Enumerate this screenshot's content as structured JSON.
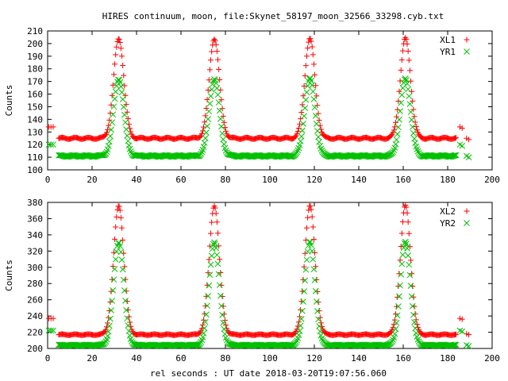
{
  "title": "HIRES continuum, moon, file:Skynet_58197_moon_32566_33298.cyb.txt",
  "xlabel": "rel seconds : UT date 2018-03-20T19:07:56.060",
  "colors": {
    "xl": "#ff0000",
    "yr": "#00c000",
    "axis": "#000000"
  },
  "chart_data": [
    {
      "type": "scatter",
      "ylabel": "Counts",
      "xlim": [
        0,
        200
      ],
      "ylim": [
        100,
        210
      ],
      "xticks": [
        "0",
        "20",
        "40",
        "60",
        "80",
        "100",
        "120",
        "140",
        "160",
        "180",
        "200"
      ],
      "yticks": [
        "100",
        "110",
        "120",
        "130",
        "140",
        "150",
        "160",
        "170",
        "180",
        "190",
        "200",
        "210"
      ],
      "legend_position": "top-right",
      "peak_centers": [
        32,
        75,
        118,
        161
      ],
      "peak_width_sigma": 2.3,
      "sample_interval": 0.4,
      "scan_range": [
        5,
        184
      ],
      "series": [
        {
          "name": "XL1",
          "marker": "plus",
          "baseline": 125,
          "peak": 204,
          "edge_points": [
            {
              "x": 0.5,
              "y": 134
            },
            {
              "x": 1.5,
              "y": 134
            },
            {
              "x": 2.5,
              "y": 134
            },
            {
              "x": 185.5,
              "y": 134
            },
            {
              "x": 186.5,
              "y": 133
            },
            {
              "x": 188.5,
              "y": 125
            },
            {
              "x": 189.5,
              "y": 124
            }
          ]
        },
        {
          "name": "YR1",
          "marker": "cross",
          "baseline": 111,
          "peak": 172,
          "edge_points": [
            {
              "x": 0.5,
              "y": 120
            },
            {
              "x": 1.5,
              "y": 120
            },
            {
              "x": 2.5,
              "y": 120
            },
            {
              "x": 185.5,
              "y": 120
            },
            {
              "x": 186.5,
              "y": 119
            },
            {
              "x": 188.5,
              "y": 111
            },
            {
              "x": 189.5,
              "y": 110
            }
          ]
        }
      ]
    },
    {
      "type": "scatter",
      "ylabel": "Counts",
      "xlim": [
        0,
        200
      ],
      "ylim": [
        200,
        380
      ],
      "xticks": [
        "0",
        "20",
        "40",
        "60",
        "80",
        "100",
        "120",
        "140",
        "160",
        "180",
        "200"
      ],
      "yticks": [
        "200",
        "220",
        "240",
        "260",
        "280",
        "300",
        "320",
        "340",
        "360",
        "380"
      ],
      "legend_position": "top-right",
      "peak_centers": [
        32,
        75,
        118,
        161
      ],
      "peak_width_sigma": 2.3,
      "sample_interval": 0.4,
      "scan_range": [
        5,
        184
      ],
      "series": [
        {
          "name": "XL2",
          "marker": "plus",
          "baseline": 217,
          "peak": 376,
          "edge_points": [
            {
              "x": 0.5,
              "y": 237
            },
            {
              "x": 1.5,
              "y": 237
            },
            {
              "x": 2.5,
              "y": 237
            },
            {
              "x": 185.5,
              "y": 237
            },
            {
              "x": 186.5,
              "y": 236
            },
            {
              "x": 188.5,
              "y": 218
            },
            {
              "x": 189.5,
              "y": 217
            }
          ]
        },
        {
          "name": "YR2",
          "marker": "cross",
          "baseline": 204,
          "peak": 331,
          "edge_points": [
            {
              "x": 0.5,
              "y": 222
            },
            {
              "x": 1.5,
              "y": 222
            },
            {
              "x": 2.5,
              "y": 222
            },
            {
              "x": 185.5,
              "y": 222
            },
            {
              "x": 186.5,
              "y": 221
            },
            {
              "x": 188.5,
              "y": 204
            },
            {
              "x": 189.5,
              "y": 203
            }
          ]
        }
      ]
    }
  ]
}
